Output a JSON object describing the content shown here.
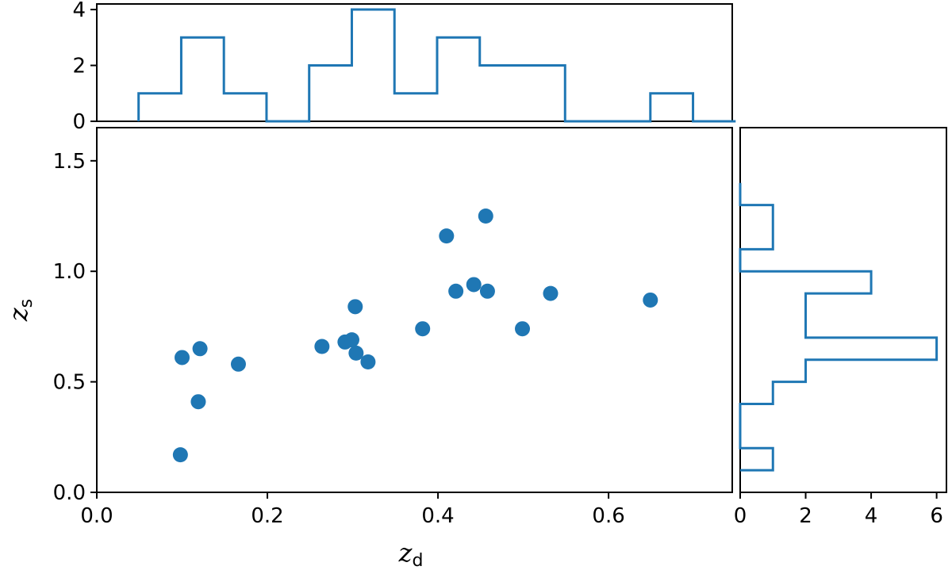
{
  "chart_data": [
    {
      "type": "scatter",
      "xlabel": "z",
      "xlabel_sub": "d",
      "ylabel": "z",
      "ylabel_sub": "s",
      "xlim": [
        0.0,
        0.745
      ],
      "ylim": [
        0.0,
        1.65
      ],
      "xticks": [
        "0.0",
        "0.2",
        "0.4",
        "0.6"
      ],
      "xtick_values": [
        0.0,
        0.2,
        0.4,
        0.6
      ],
      "yticks": [
        "0.0",
        "0.5",
        "1.0",
        "1.5"
      ],
      "ytick_values": [
        0.0,
        0.5,
        1.0,
        1.5
      ],
      "color": "#1f77b4",
      "points": [
        {
          "x": 0.098,
          "y": 0.17
        },
        {
          "x": 0.1,
          "y": 0.61
        },
        {
          "x": 0.119,
          "y": 0.41
        },
        {
          "x": 0.121,
          "y": 0.65
        },
        {
          "x": 0.166,
          "y": 0.58
        },
        {
          "x": 0.264,
          "y": 0.66
        },
        {
          "x": 0.291,
          "y": 0.68
        },
        {
          "x": 0.299,
          "y": 0.69
        },
        {
          "x": 0.303,
          "y": 0.84
        },
        {
          "x": 0.304,
          "y": 0.63
        },
        {
          "x": 0.318,
          "y": 0.59
        },
        {
          "x": 0.382,
          "y": 0.74
        },
        {
          "x": 0.41,
          "y": 1.16
        },
        {
          "x": 0.421,
          "y": 0.91
        },
        {
          "x": 0.442,
          "y": 0.94
        },
        {
          "x": 0.456,
          "y": 1.25
        },
        {
          "x": 0.458,
          "y": 0.91
        },
        {
          "x": 0.499,
          "y": 0.74
        },
        {
          "x": 0.532,
          "y": 0.9
        },
        {
          "x": 0.649,
          "y": 0.87
        }
      ]
    },
    {
      "type": "histogram",
      "orientation": "vertical",
      "position": "top",
      "bin_edges": [
        0.049,
        0.099,
        0.149,
        0.199,
        0.249,
        0.299,
        0.349,
        0.399,
        0.449,
        0.499,
        0.549,
        0.599,
        0.649,
        0.699,
        0.749
      ],
      "counts": [
        1,
        3,
        1,
        0,
        2,
        4,
        1,
        3,
        2,
        2,
        0,
        0,
        1,
        0
      ],
      "ylim": [
        0,
        4.2
      ],
      "yticks": [
        "0",
        "2",
        "4"
      ],
      "ytick_values": [
        0,
        2,
        4
      ],
      "color": "#1f77b4"
    },
    {
      "type": "histogram",
      "orientation": "horizontal",
      "position": "right",
      "bin_edges": [
        0.1,
        0.2,
        0.3,
        0.4,
        0.5,
        0.6,
        0.7,
        0.8,
        0.9,
        1.0,
        1.1,
        1.2,
        1.3,
        1.4
      ],
      "counts": [
        1,
        0,
        0,
        1,
        2,
        6,
        2,
        2,
        4,
        0,
        1,
        1,
        0
      ],
      "xlim": [
        0,
        6.3
      ],
      "xticks": [
        "0",
        "2",
        "4",
        "6"
      ],
      "xtick_values": [
        0,
        2,
        4,
        6
      ],
      "color": "#1f77b4"
    }
  ]
}
